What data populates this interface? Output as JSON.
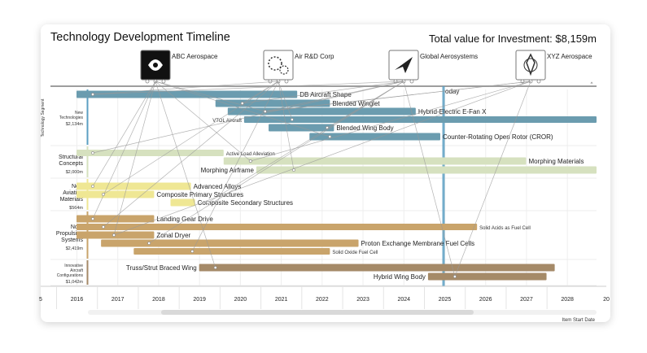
{
  "header": {
    "title": "Technology Development Timeline",
    "total": "Total value for Investment: $8,159m"
  },
  "axis_side_label": "Technology Segment",
  "today_label": "oday",
  "footer_label": "Item Start Date",
  "companies": [
    {
      "name": "ABC Aerospace",
      "icon": "swirl-logo-icon",
      "dark": true
    },
    {
      "name": "Air R&D Corp",
      "icon": "gears-logo-icon",
      "dark": false
    },
    {
      "name": "Global Aerosystems",
      "icon": "paper-plane-logo-icon",
      "dark": false
    },
    {
      "name": "XYZ Aerospace",
      "icon": "rocket-logo-icon",
      "dark": false
    }
  ],
  "colors": {
    "new_tech": "#6b9caf",
    "structural": "#d6e1bf",
    "materials": "#efe794",
    "propulsion": "#c9a46b",
    "configs": "#a58a68",
    "today": "#5b9fc3",
    "segment_line": "#5b9fc3",
    "links": "#999999"
  },
  "chart_data": {
    "type": "timeline",
    "title": "Technology Development Timeline",
    "x_ticks": [
      "5",
      "2016",
      "2017",
      "2018",
      "2019",
      "2020",
      "2021",
      "2022",
      "2023",
      "2024",
      "2025",
      "2026",
      "2027",
      "2028",
      "20"
    ],
    "x_range": [
      2015.5,
      2028.9
    ],
    "today": 2025.0,
    "segments": [
      {
        "name": "New Technologies",
        "value": "$2,134m",
        "small": true,
        "color_key": "new_tech",
        "items": [
          {
            "label": "DB Aircraft Shape",
            "start": 2016.0,
            "end": 2021.4,
            "small": false
          },
          {
            "label": "Blended Winglet",
            "start": 2019.4,
            "end": 2022.2,
            "small": false
          },
          {
            "label": "Hybrid-Electric E-Fan X",
            "start": 2019.7,
            "end": 2024.3,
            "small": false
          },
          {
            "label": "VTOL Aircraft",
            "start": 2020.1,
            "end": 2028.9,
            "small": true,
            "label_left": true
          },
          {
            "label": "Blended Wing Body",
            "start": 2020.7,
            "end": 2022.3,
            "small": false
          },
          {
            "label": "Counter-Rotating Open Rotor (CROR)",
            "start": 2021.7,
            "end": 2024.9,
            "small": false
          }
        ]
      },
      {
        "name": "Structural Concepts",
        "value": "$2,000m",
        "small": false,
        "color_key": "structural",
        "items": [
          {
            "label": "Active Load Alleviation",
            "start": 2016.0,
            "end": 2019.6,
            "small": true
          },
          {
            "label": "Morphing Materials",
            "start": 2019.6,
            "end": 2027.0,
            "small": false
          },
          {
            "label": "Morphing Airframe",
            "start": 2020.4,
            "end": 2028.8,
            "small": false,
            "label_left": true
          }
        ]
      },
      {
        "name": "New Aviation Materials",
        "value": "$564m",
        "small": false,
        "color_key": "materials",
        "items": [
          {
            "label": "Advanced Alloys",
            "start": 2016.0,
            "end": 2018.8,
            "small": false
          },
          {
            "label": "Composite Primary Structures",
            "start": 2016.0,
            "end": 2017.9,
            "small": false
          },
          {
            "label": "Composite Secondary Structures",
            "start": 2018.3,
            "end": 2018.9,
            "small": false
          }
        ]
      },
      {
        "name": "Non-Propulsion Systems",
        "value": "$2,419m",
        "small": false,
        "color_key": "propulsion",
        "items": [
          {
            "label": "Landing Gear Drive",
            "start": 2016.0,
            "end": 2017.9,
            "small": false
          },
          {
            "label": "Solid Acids as Fuel Cell",
            "start": 2016.0,
            "end": 2025.8,
            "small": true
          },
          {
            "label": "Zonal Dryer",
            "start": 2016.0,
            "end": 2017.9,
            "small": false
          },
          {
            "label": "Proton Exchange Membrane Fuel Cells",
            "start": 2016.6,
            "end": 2022.9,
            "small": false
          },
          {
            "label": "Solid Oxide Fuel Cell",
            "start": 2017.4,
            "end": 2022.2,
            "small": true
          }
        ]
      },
      {
        "name": "Innovative Aircraft Configurations",
        "value": "$1,042m",
        "small": true,
        "color_key": "configs",
        "items": [
          {
            "label": "Truss/Strut Braced Wing",
            "start": 2019.0,
            "end": 2027.7,
            "small": false,
            "label_left": true
          },
          {
            "label": "Hybrid Wing Body",
            "start": 2024.6,
            "end": 2027.5,
            "small": false,
            "label_left": true
          }
        ]
      }
    ]
  }
}
